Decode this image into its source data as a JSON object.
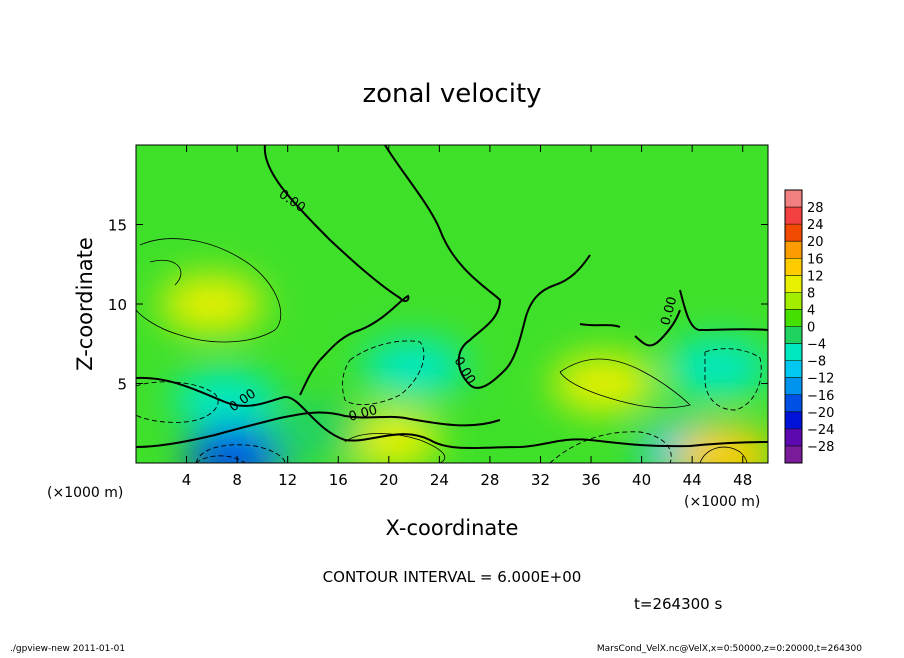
{
  "chart_data": {
    "type": "contour",
    "title": "zonal velocity",
    "xlabel": "X-coordinate",
    "ylabel": "Z-coordinate",
    "x_unit": "(×1000 m)",
    "y_unit": "(×1000 m)",
    "xlim": [
      0,
      50
    ],
    "ylim": [
      0,
      20
    ],
    "x_ticks": [
      4,
      8,
      12,
      16,
      20,
      24,
      28,
      32,
      36,
      40,
      44,
      48
    ],
    "y_ticks": [
      5,
      10,
      15
    ],
    "zero_contour_labels": [
      "0.00",
      "0.00",
      "0.00",
      "0.00",
      "0.00"
    ],
    "contour_interval": "CONTOUR INTERVAL = 6.000E+00",
    "time": "t=264300 s",
    "colorbar": {
      "levels": [
        28,
        24,
        20,
        16,
        12,
        8,
        4,
        0,
        -4,
        -8,
        -12,
        -16,
        -20,
        -24,
        -28
      ],
      "colors": [
        "#f28080",
        "#f44040",
        "#f24a00",
        "#fb9c00",
        "#ffcc00",
        "#e6f000",
        "#a3ee00",
        "#46e000",
        "#20d260",
        "#00e8c0",
        "#00c8f0",
        "#0094ee",
        "#0050e6",
        "#0012d8",
        "#5c0ab0",
        "#7a1b9a"
      ]
    },
    "regions": [
      {
        "x": 6,
        "z": 10,
        "u": 10
      },
      {
        "x": 7,
        "z": 4,
        "u": -6
      },
      {
        "x": 8,
        "z": 0.5,
        "u": -20
      },
      {
        "x": 22,
        "z": 6,
        "u": -8
      },
      {
        "x": 20,
        "z": 1.5,
        "u": 10
      },
      {
        "x": 37,
        "z": 5,
        "u": 10
      },
      {
        "x": 44,
        "z": 0.8,
        "u": -10
      },
      {
        "x": 46.5,
        "z": 0.5,
        "u": 14
      },
      {
        "x": 46,
        "z": 6,
        "u": -7
      },
      {
        "x": 14,
        "z": 2,
        "u": -3
      }
    ]
  },
  "footer": {
    "left": "./gpview-new   2011-01-01",
    "right": "MarsCond_VelX.nc@VelX,x=0:50000,z=0:20000,t=264300"
  }
}
